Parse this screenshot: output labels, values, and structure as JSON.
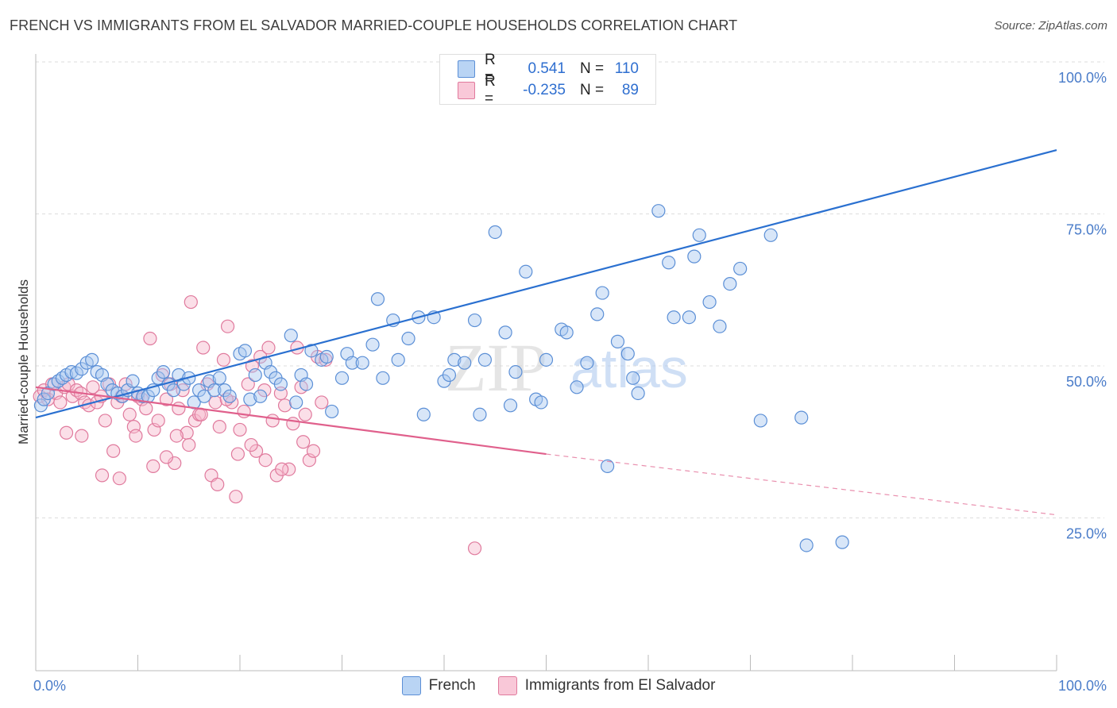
{
  "title": "FRENCH VS IMMIGRANTS FROM EL SALVADOR MARRIED-COUPLE HOUSEHOLDS CORRELATION CHART",
  "source": "Source: ZipAtlas.com",
  "watermark": {
    "zip": "ZIP",
    "atlas": "atlas"
  },
  "legend": {
    "french": {
      "r_label": "R =",
      "r_value": "0.541",
      "n_label": "N =",
      "n_value": "110"
    },
    "salvador": {
      "r_label": "R =",
      "r_value": "-0.235",
      "n_label": "N =",
      "n_value": "89"
    }
  },
  "bottom_legend": {
    "french": "French",
    "salvador": "Immigrants from El Salvador"
  },
  "colors": {
    "french_fill": "#a8c8f0",
    "french_stroke": "#5b8fd6",
    "french_line": "#2a70d0",
    "salvador_fill": "#f7b8cc",
    "salvador_stroke": "#e07a9d",
    "salvador_line": "#e0608c",
    "tick_label": "#4a7cc9",
    "grid": "#dddddd"
  },
  "chart_data": {
    "type": "scatter",
    "title": "FRENCH VS IMMIGRANTS FROM EL SALVADOR MARRIED-COUPLE HOUSEHOLDS CORRELATION CHART",
    "ylabel": "Married-couple Households",
    "xlabel": "",
    "x_ticks": [
      "0.0%",
      "100.0%"
    ],
    "y_ticks": [
      "25.0%",
      "50.0%",
      "75.0%",
      "100.0%"
    ],
    "xlim": [
      0,
      100
    ],
    "ylim": [
      0,
      105
    ],
    "grid": true,
    "legend_position": "top-center",
    "series": [
      {
        "name": "French",
        "r": 0.541,
        "n": 110,
        "trend": {
          "x0": 0,
          "y0": 41.5,
          "x1": 100,
          "y1": 85.5
        },
        "points": [
          [
            0.5,
            43.5
          ],
          [
            0.8,
            44.5
          ],
          [
            1.2,
            45.5
          ],
          [
            1.8,
            47
          ],
          [
            2.2,
            47.5
          ],
          [
            2.6,
            48
          ],
          [
            3,
            48.5
          ],
          [
            3.5,
            49
          ],
          [
            4,
            48.8
          ],
          [
            4.5,
            49.5
          ],
          [
            5,
            50.5
          ],
          [
            5.5,
            51
          ],
          [
            6,
            49
          ],
          [
            6.5,
            48.5
          ],
          [
            7,
            47
          ],
          [
            7.5,
            46
          ],
          [
            8,
            45.5
          ],
          [
            8.5,
            45
          ],
          [
            9,
            46
          ],
          [
            9.5,
            47.5
          ],
          [
            10,
            45.5
          ],
          [
            10.5,
            45
          ],
          [
            11,
            45
          ],
          [
            11.5,
            46
          ],
          [
            12,
            48
          ],
          [
            12.5,
            49
          ],
          [
            13,
            47
          ],
          [
            13.5,
            46
          ],
          [
            14,
            48.5
          ],
          [
            14.5,
            47
          ],
          [
            15,
            48
          ],
          [
            15.5,
            44
          ],
          [
            16,
            46
          ],
          [
            16.5,
            45
          ],
          [
            17,
            47.5
          ],
          [
            17.5,
            46
          ],
          [
            18,
            48
          ],
          [
            18.5,
            46
          ],
          [
            19,
            45
          ],
          [
            20,
            52
          ],
          [
            20.5,
            52.5
          ],
          [
            21,
            44.5
          ],
          [
            21.5,
            48.5
          ],
          [
            22,
            45
          ],
          [
            22.5,
            50.5
          ],
          [
            23,
            49
          ],
          [
            23.5,
            48
          ],
          [
            24,
            47
          ],
          [
            25,
            55
          ],
          [
            25.5,
            44
          ],
          [
            26,
            48.5
          ],
          [
            26.5,
            47
          ],
          [
            27,
            52.5
          ],
          [
            28,
            51
          ],
          [
            28.5,
            51.5
          ],
          [
            29,
            42.5
          ],
          [
            30,
            48
          ],
          [
            30.5,
            52
          ],
          [
            31,
            50.5
          ],
          [
            32,
            50.5
          ],
          [
            33,
            53.5
          ],
          [
            33.5,
            61
          ],
          [
            34,
            48
          ],
          [
            35,
            57.5
          ],
          [
            35.5,
            51
          ],
          [
            36.5,
            54.5
          ],
          [
            37.5,
            58
          ],
          [
            38,
            42
          ],
          [
            39,
            58
          ],
          [
            40,
            47.5
          ],
          [
            40.5,
            48.5
          ],
          [
            41,
            51
          ],
          [
            42,
            50.5
          ],
          [
            43,
            57.5
          ],
          [
            43.5,
            42
          ],
          [
            44,
            51
          ],
          [
            45,
            72
          ],
          [
            46,
            55.5
          ],
          [
            46.5,
            43.5
          ],
          [
            47,
            49
          ],
          [
            48,
            65.5
          ],
          [
            49,
            44.5
          ],
          [
            49.5,
            44
          ],
          [
            50,
            51
          ],
          [
            51.5,
            56
          ],
          [
            52,
            55.5
          ],
          [
            53,
            46.5
          ],
          [
            54,
            50.5
          ],
          [
            55,
            58.5
          ],
          [
            55.5,
            62
          ],
          [
            56,
            33.5
          ],
          [
            57,
            54
          ],
          [
            58,
            52
          ],
          [
            58.5,
            48
          ],
          [
            59,
            45.5
          ],
          [
            61,
            75.5
          ],
          [
            62,
            67
          ],
          [
            62.5,
            58
          ],
          [
            64,
            58
          ],
          [
            64.5,
            68
          ],
          [
            65,
            71.5
          ],
          [
            66,
            60.5
          ],
          [
            67,
            56.5
          ],
          [
            68,
            63.5
          ],
          [
            69,
            66
          ],
          [
            71,
            41
          ],
          [
            72,
            71.5
          ],
          [
            75,
            41.5
          ],
          [
            75.5,
            20.5
          ],
          [
            79,
            21
          ]
        ]
      },
      {
        "name": "Immigrants from El Salvador",
        "r": -0.235,
        "n": 89,
        "trend": {
          "x0": 0,
          "y0": 46.5,
          "x1": 50,
          "y1": 35.5,
          "dash_to_x": 100,
          "dash_to_y": 25.5
        },
        "points": [
          [
            0.4,
            45
          ],
          [
            0.8,
            46
          ],
          [
            1.2,
            44.5
          ],
          [
            1.6,
            47
          ],
          [
            2,
            45.5
          ],
          [
            2.4,
            44
          ],
          [
            2.8,
            46.5
          ],
          [
            3.2,
            47
          ],
          [
            3.6,
            45
          ],
          [
            4,
            46
          ],
          [
            4.4,
            45.5
          ],
          [
            4.8,
            44
          ],
          [
            5.2,
            43.5
          ],
          [
            5.6,
            46.5
          ],
          [
            6,
            44
          ],
          [
            6.4,
            45
          ],
          [
            6.8,
            41
          ],
          [
            7.2,
            47
          ],
          [
            7.6,
            36
          ],
          [
            8,
            44
          ],
          [
            8.4,
            45
          ],
          [
            8.8,
            47
          ],
          [
            9.2,
            42
          ],
          [
            9.6,
            40
          ],
          [
            10,
            45
          ],
          [
            10.4,
            44.5
          ],
          [
            10.8,
            43
          ],
          [
            11.2,
            54.5
          ],
          [
            11.6,
            39.5
          ],
          [
            12,
            41
          ],
          [
            12.4,
            48.5
          ],
          [
            12.8,
            44.5
          ],
          [
            13.2,
            47
          ],
          [
            13.6,
            34
          ],
          [
            14,
            43
          ],
          [
            14.4,
            46
          ],
          [
            14.8,
            39
          ],
          [
            15.2,
            60.5
          ],
          [
            15.6,
            41
          ],
          [
            16,
            42
          ],
          [
            16.4,
            53
          ],
          [
            16.8,
            47
          ],
          [
            17.2,
            32
          ],
          [
            17.6,
            44
          ],
          [
            18,
            40
          ],
          [
            18.4,
            51
          ],
          [
            18.8,
            56.5
          ],
          [
            19.2,
            44
          ],
          [
            19.6,
            28.5
          ],
          [
            20,
            39.5
          ],
          [
            20.4,
            42.5
          ],
          [
            20.8,
            47
          ],
          [
            21.2,
            50
          ],
          [
            21.6,
            36
          ],
          [
            22,
            51.5
          ],
          [
            22.4,
            46
          ],
          [
            22.8,
            53
          ],
          [
            23.2,
            41
          ],
          [
            23.6,
            32
          ],
          [
            24,
            45.5
          ],
          [
            24.4,
            43.5
          ],
          [
            24.8,
            33
          ],
          [
            25.2,
            40.5
          ],
          [
            25.6,
            53
          ],
          [
            26,
            46.5
          ],
          [
            26.4,
            42
          ],
          [
            26.8,
            34.5
          ],
          [
            27.2,
            36
          ],
          [
            27.6,
            51.5
          ],
          [
            28,
            44
          ],
          [
            28.4,
            51
          ],
          [
            3,
            39
          ],
          [
            4.5,
            38.5
          ],
          [
            6.5,
            32
          ],
          [
            8.2,
            31.5
          ],
          [
            9.8,
            38.5
          ],
          [
            11.5,
            33.5
          ],
          [
            12.8,
            35
          ],
          [
            13.8,
            38.5
          ],
          [
            15,
            37
          ],
          [
            16.2,
            42
          ],
          [
            17.8,
            30.5
          ],
          [
            18.7,
            44.5
          ],
          [
            19.8,
            35.5
          ],
          [
            21.1,
            37
          ],
          [
            22.5,
            34.5
          ],
          [
            24.1,
            33
          ],
          [
            26.2,
            37.5
          ],
          [
            43,
            20
          ]
        ]
      }
    ]
  }
}
